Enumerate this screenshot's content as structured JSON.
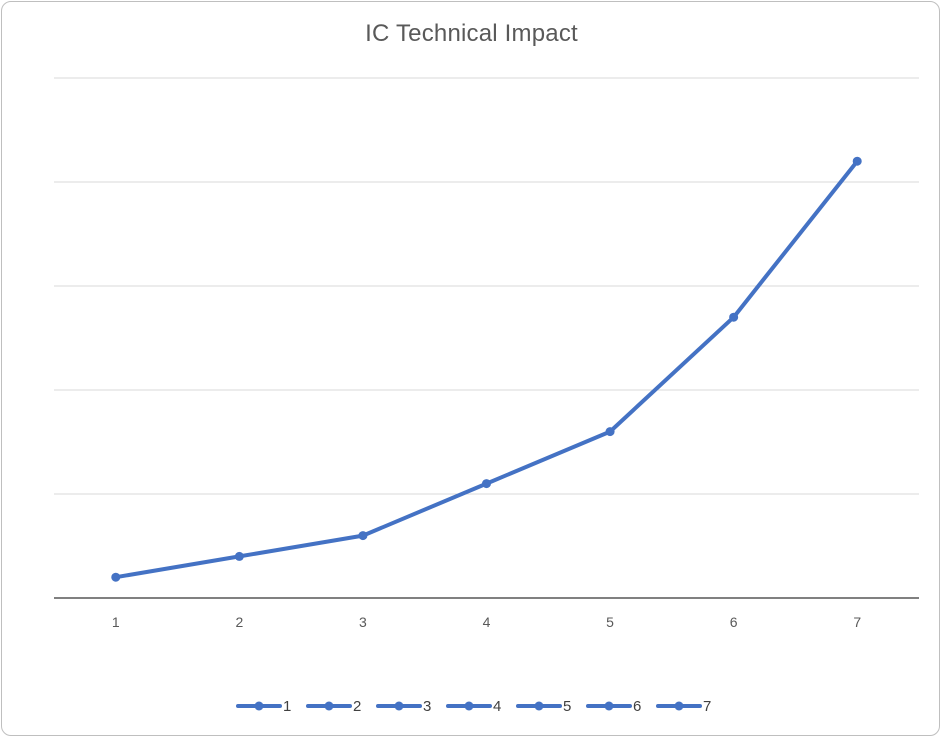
{
  "chart_data": {
    "type": "line",
    "title": "IC Technical Impact",
    "xlabel": "",
    "ylabel": "",
    "categories": [
      "1",
      "2",
      "3",
      "4",
      "5",
      "6",
      "7"
    ],
    "series": [
      {
        "values": [
          0.2,
          0.4,
          0.6,
          1.1,
          1.6,
          2.7,
          4.2
        ]
      }
    ],
    "ylim": [
      0,
      5
    ],
    "y_gridlines": [
      1,
      2,
      3,
      4,
      5
    ],
    "y_tick_labels_shown": false,
    "grid": true,
    "legend": {
      "position": "bottom",
      "entries": [
        "1",
        "2",
        "3",
        "4",
        "5",
        "6",
        "7"
      ]
    },
    "colors": {
      "series": "#4472c4",
      "grid": "#d9d9d9",
      "axis": "#000000",
      "text": "#595959"
    }
  }
}
